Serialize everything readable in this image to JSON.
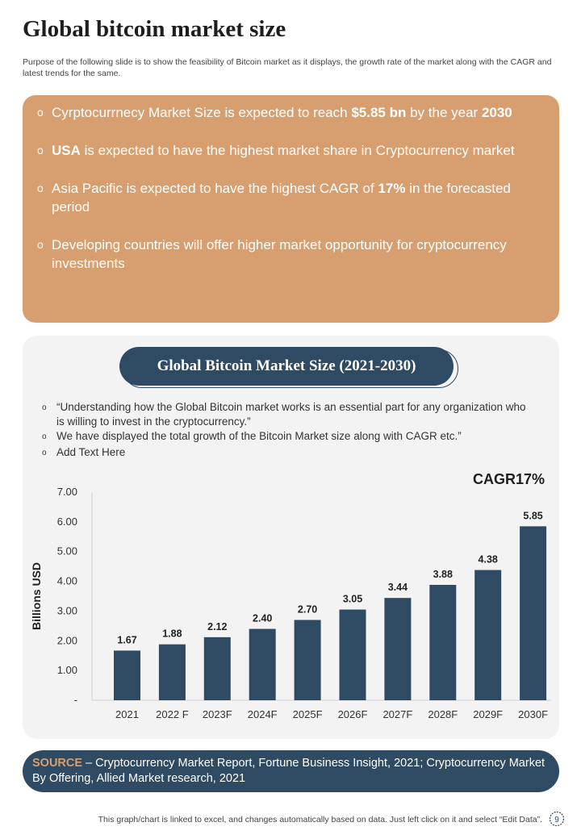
{
  "title": "Global bitcoin market size",
  "subtitle": "Purpose of the following slide is to show the feasibility of Bitcoin market as it displays, the growth rate of the market along with the CAGR and latest trends for the same.",
  "highlights": [
    {
      "pre": "Cyrptocurrnecy Market Size is expected to reach ",
      "bold": "$5.85 bn",
      "mid": " by the year ",
      "bold2": "2030",
      "post": ""
    },
    {
      "pre": "",
      "bold": "USA",
      "mid": " is expected to have the highest market share in Cryptocurrency market",
      "bold2": "",
      "post": ""
    },
    {
      "pre": "Asia Pacific is expected to have the highest CAGR of ",
      "bold": "17%",
      "mid": " in the forecasted period",
      "bold2": "",
      "post": ""
    },
    {
      "pre": "Developing countries will offer higher market opportunity for cryptocurrency investments",
      "bold": "",
      "mid": "",
      "bold2": "",
      "post": ""
    }
  ],
  "chart_header": "Global Bitcoin Market Size (2021-2030)",
  "notes": [
    "“Understanding how the Global Bitcoin market works is an essential part for any organization who is willing to invest in the cryptocurrency.”",
    "We have displayed the total growth of the Bitcoin Market size along with CAGR etc.”",
    "Add Text Here"
  ],
  "cagr_label": "CAGR17%",
  "chart_data": {
    "type": "bar",
    "title": "Global Bitcoin Market Size (2021-2030)",
    "categories": [
      "2021",
      "2022 F",
      "2023F",
      "2024F",
      "2025F",
      "2026F",
      "2027F",
      "2028F",
      "2029F",
      "2030F"
    ],
    "values": [
      1.67,
      1.88,
      2.12,
      2.4,
      2.7,
      3.05,
      3.44,
      3.88,
      4.38,
      5.85
    ],
    "value_labels": [
      "1.67",
      "1.88",
      "2.12",
      "2.40",
      "2.70",
      "3.05",
      "3.44",
      "3.88",
      "4.38",
      "5.85"
    ],
    "ylabel": "Billions USD",
    "xlabel": "",
    "ylim": [
      0,
      7
    ],
    "yticks": [
      0,
      1,
      2,
      3,
      4,
      5,
      6,
      7
    ],
    "ytick_labels": [
      "-",
      "1.00",
      "2.00",
      "3.00",
      "4.00",
      "5.00",
      "6.00",
      "7.00"
    ],
    "bar_color": "#2f4a63",
    "grid": false
  },
  "source": {
    "label": "SOURCE",
    "text": " – Cryptocurrency  Market Report, Fortune Business Insight, 2021; Cryptocurrency Market By Offering, Allied Market research, 2021"
  },
  "footer": "This graph/chart is linked to excel,  and changes automatically based on data. Just left click on it and select “Edit Data”.",
  "page_number": "9",
  "colors": {
    "accent": "#d79f6f",
    "navy": "#2f4a63",
    "panel": "#f3f3f3"
  }
}
